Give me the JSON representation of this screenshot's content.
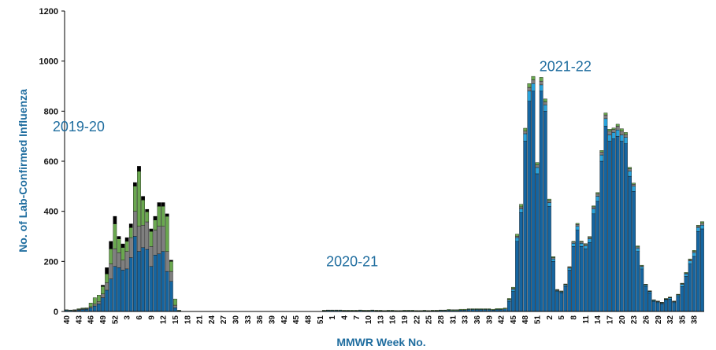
{
  "chart_data": {
    "type": "bar",
    "stacked": true,
    "ylabel": "No. of Lab-Confirmed Influenza",
    "xlabel": "MMWR Week No.",
    "ylim": [
      0,
      1200
    ],
    "yticks": [
      0,
      200,
      400,
      600,
      800,
      1000,
      1200
    ],
    "tick_labels": [
      "40",
      "43",
      "46",
      "49",
      "52",
      "3",
      "6",
      "9",
      "12",
      "15",
      "18",
      "21",
      "24",
      "27",
      "30",
      "33",
      "36",
      "39",
      "42",
      "45",
      "48",
      "51",
      "1",
      "4",
      "7",
      "10",
      "13",
      "16",
      "19",
      "22",
      "25",
      "28",
      "31",
      "33",
      "36",
      "39",
      "42",
      "45",
      "48",
      "51",
      "2",
      "5",
      "8",
      "11",
      "14",
      "17",
      "20",
      "23",
      "26",
      "29",
      "32",
      "35",
      "38"
    ],
    "season_labels": [
      {
        "text": "2019-20",
        "week_index": 3,
        "value": 720
      },
      {
        "text": "2020-21",
        "week_index": 71,
        "value": 180
      },
      {
        "text": "2021-22",
        "week_index": 124,
        "value": 960
      }
    ],
    "colors": [
      "#1565a0",
      "#29a3dc",
      "#7f7f7f",
      "#6aa84f",
      "#000000"
    ],
    "series": [
      {
        "values": [
          5,
          4,
          3,
          6,
          8,
          9,
          14,
          22,
          30,
          55,
          85,
          130,
          180,
          175,
          165,
          170,
          215,
          300,
          240,
          255,
          248,
          180,
          225,
          230,
          240,
          160,
          120,
          15,
          3,
          0,
          0,
          0,
          0,
          0,
          0,
          0,
          0,
          0,
          0,
          0,
          0,
          0,
          0,
          0,
          0,
          0,
          0,
          0,
          0,
          0,
          0,
          0,
          0,
          0,
          0,
          0,
          0,
          0,
          0,
          0,
          0,
          0,
          0,
          0,
          3,
          4,
          4,
          4,
          4,
          3,
          3,
          3,
          3,
          4,
          3,
          3,
          4,
          3,
          3,
          2,
          3,
          3,
          2,
          2,
          3,
          3,
          3,
          2,
          2,
          3,
          2,
          3,
          3,
          4,
          4,
          5,
          4,
          4,
          6,
          6,
          8,
          8,
          8,
          8,
          8,
          8,
          6,
          8,
          8,
          10,
          40,
          80,
          280,
          395,
          680,
          840,
          880,
          550,
          880,
          800,
          420,
          200,
          80,
          75,
          100,
          165,
          260,
          325,
          260,
          250,
          275,
          390,
          440,
          600,
          740,
          680,
          690,
          700,
          680,
          670,
          540,
          480,
          240,
          170,
          100,
          75,
          40,
          35,
          30,
          45,
          50,
          35,
          60,
          100,
          140,
          190,
          220,
          320,
          330
        ]
      },
      {
        "values": [
          0,
          0,
          0,
          0,
          0,
          0,
          0,
          0,
          0,
          0,
          0,
          0,
          0,
          0,
          0,
          0,
          0,
          0,
          0,
          0,
          0,
          0,
          0,
          0,
          0,
          0,
          0,
          0,
          0,
          0,
          0,
          0,
          0,
          0,
          0,
          0,
          0,
          0,
          0,
          0,
          0,
          0,
          0,
          0,
          0,
          0,
          0,
          0,
          0,
          0,
          0,
          0,
          0,
          0,
          0,
          0,
          0,
          0,
          0,
          0,
          0,
          0,
          0,
          0,
          0,
          0,
          0,
          0,
          0,
          0,
          0,
          0,
          0,
          0,
          0,
          0,
          0,
          0,
          0,
          0,
          0,
          0,
          0,
          0,
          0,
          0,
          0,
          0,
          0,
          0,
          0,
          0,
          0,
          0,
          0,
          0,
          0,
          0,
          0,
          0,
          0,
          0,
          0,
          0,
          0,
          0,
          0,
          0,
          0,
          0,
          5,
          8,
          15,
          15,
          30,
          40,
          30,
          25,
          25,
          25,
          15,
          10,
          3,
          3,
          5,
          8,
          12,
          15,
          12,
          12,
          15,
          20,
          20,
          25,
          30,
          25,
          25,
          25,
          25,
          25,
          20,
          20,
          12,
          8,
          5,
          4,
          3,
          3,
          3,
          3,
          4,
          3,
          5,
          8,
          10,
          12,
          15,
          15,
          15
        ]
      },
      {
        "values": [
          0,
          0,
          2,
          2,
          3,
          3,
          5,
          8,
          10,
          15,
          30,
          60,
          70,
          60,
          40,
          70,
          80,
          100,
          100,
          90,
          110,
          80,
          100,
          110,
          100,
          80,
          40,
          10,
          0,
          0,
          0,
          0,
          0,
          0,
          0,
          0,
          0,
          0,
          0,
          0,
          0,
          0,
          0,
          0,
          0,
          0,
          0,
          0,
          0,
          0,
          0,
          0,
          0,
          0,
          0,
          0,
          0,
          0,
          0,
          0,
          0,
          0,
          0,
          0,
          0,
          0,
          0,
          0,
          0,
          0,
          0,
          0,
          0,
          0,
          0,
          0,
          0,
          0,
          0,
          0,
          0,
          0,
          0,
          0,
          0,
          0,
          0,
          0,
          0,
          0,
          0,
          0,
          0,
          0,
          0,
          0,
          0,
          0,
          0,
          0,
          0,
          0,
          0,
          0,
          0,
          0,
          0,
          0,
          0,
          0,
          3,
          4,
          6,
          8,
          10,
          15,
          15,
          10,
          15,
          12,
          8,
          5,
          3,
          2,
          3,
          4,
          5,
          8,
          6,
          6,
          6,
          8,
          10,
          12,
          15,
          15,
          12,
          15,
          15,
          12,
          10,
          8,
          6,
          4,
          2,
          2,
          2,
          2,
          2,
          2,
          2,
          2,
          2,
          3,
          3,
          5,
          5,
          6,
          8
        ]
      },
      {
        "values": [
          2,
          2,
          2,
          3,
          3,
          3,
          15,
          25,
          25,
          30,
          35,
          60,
          100,
          55,
          50,
          40,
          40,
          100,
          220,
          100,
          40,
          60,
          40,
          80,
          80,
          140,
          40,
          25,
          2,
          0,
          0,
          0,
          0,
          0,
          0,
          0,
          0,
          0,
          0,
          0,
          0,
          0,
          0,
          0,
          0,
          0,
          0,
          0,
          0,
          0,
          0,
          0,
          0,
          0,
          0,
          0,
          0,
          0,
          0,
          0,
          0,
          0,
          0,
          0,
          2,
          2,
          2,
          2,
          2,
          2,
          2,
          2,
          2,
          2,
          2,
          2,
          2,
          2,
          2,
          2,
          2,
          2,
          2,
          2,
          2,
          2,
          2,
          2,
          2,
          2,
          2,
          2,
          2,
          2,
          2,
          3,
          3,
          3,
          3,
          3,
          3,
          3,
          3,
          3,
          3,
          3,
          3,
          4,
          4,
          4,
          4,
          5,
          8,
          10,
          12,
          15,
          14,
          10,
          15,
          12,
          6,
          4,
          2,
          2,
          2,
          2,
          3,
          4,
          3,
          3,
          3,
          4,
          5,
          6,
          8,
          8,
          6,
          8,
          10,
          8,
          6,
          5,
          4,
          3,
          2,
          2,
          2,
          2,
          2,
          2,
          2,
          2,
          2,
          2,
          3,
          3,
          4,
          4,
          6
        ]
      },
      {
        "values": [
          0,
          0,
          0,
          0,
          0,
          0,
          0,
          0,
          0,
          5,
          25,
          30,
          30,
          10,
          15,
          15,
          15,
          15,
          20,
          15,
          10,
          10,
          15,
          15,
          15,
          10,
          5,
          0,
          0,
          0,
          0,
          0,
          0,
          0,
          0,
          0,
          0,
          0,
          0,
          0,
          0,
          0,
          0,
          0,
          0,
          0,
          0,
          0,
          0,
          0,
          0,
          0,
          0,
          0,
          0,
          0,
          0,
          0,
          0,
          0,
          0,
          0,
          0,
          0,
          0,
          0,
          0,
          0,
          0,
          0,
          0,
          0,
          0,
          0,
          0,
          0,
          0,
          0,
          0,
          0,
          0,
          0,
          0,
          0,
          0,
          0,
          0,
          0,
          0,
          0,
          0,
          0,
          0,
          0,
          0,
          0,
          0,
          0,
          0,
          0,
          0,
          0,
          0,
          0,
          0,
          0,
          0,
          0,
          0,
          0,
          0,
          0,
          0,
          0,
          0,
          0,
          0,
          0,
          0,
          0,
          0,
          0,
          0,
          0,
          0,
          0,
          0,
          0,
          0,
          0,
          0,
          0,
          0,
          0,
          0,
          0,
          0,
          0,
          0,
          0,
          0,
          0,
          0,
          0,
          0,
          0,
          0,
          0,
          0,
          0,
          0,
          0,
          0,
          0,
          0,
          0,
          0,
          0,
          0
        ]
      }
    ]
  }
}
